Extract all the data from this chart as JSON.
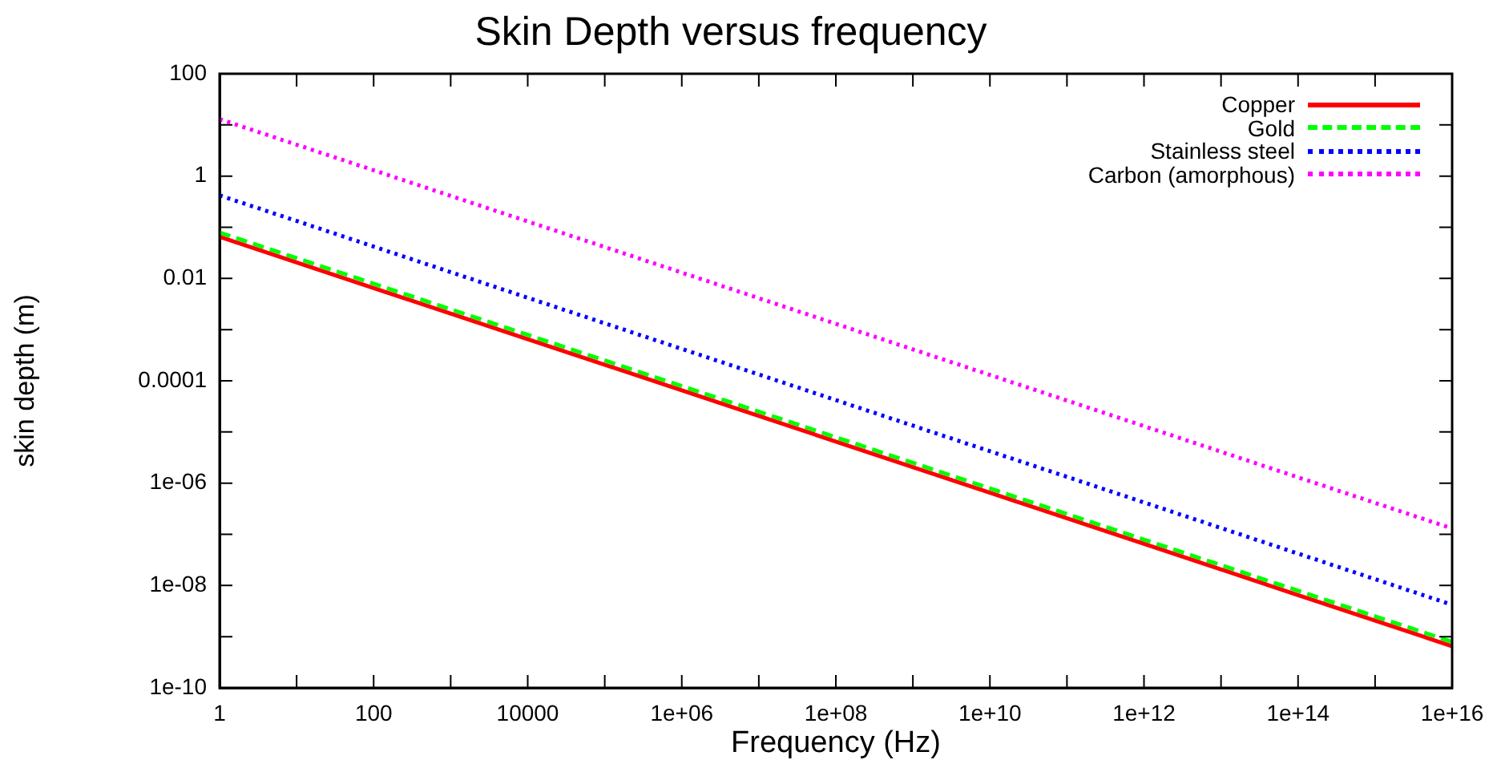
{
  "chart_data": {
    "type": "line",
    "title": "Skin Depth versus frequency",
    "xlabel": "Frequency (Hz)",
    "ylabel": "skin depth (m)",
    "log": "xy",
    "legend": "top right",
    "grid": false,
    "marker": "none",
    "xlim": [
      1,
      1e+16
    ],
    "x": [
      1,
      100,
      10000,
      1000000.0,
      100000000.0,
      10000000000.0,
      1000000000000.0,
      100000000000000.0,
      1e+16
    ],
    "ylim": [
      1e-10,
      100
    ],
    "xticks": [
      1,
      {
        "value": 10,
        "label": null
      },
      100,
      {
        "value": 1000,
        "label": null
      },
      10000,
      {
        "value": 100000,
        "label": null
      },
      {
        "value": 1000000.0,
        "label": "1e+06"
      },
      {
        "value": 10000000.0,
        "label": null
      },
      {
        "value": 100000000.0,
        "label": "1e+08"
      },
      {
        "value": 1000000000.0,
        "label": null
      },
      {
        "value": 10000000000.0,
        "label": "1e+10"
      },
      {
        "value": 100000000000.0,
        "label": null
      },
      {
        "value": 1000000000000.0,
        "label": "1e+12"
      },
      {
        "value": 10000000000000.0,
        "label": null
      },
      {
        "value": 100000000000000.0,
        "label": "1e+14"
      },
      {
        "value": 1000000000000000.0,
        "label": null
      },
      {
        "value": 1e+16,
        "label": "1e+16"
      }
    ],
    "yticks": [
      {
        "value": 1e-10,
        "label": "1e-10"
      },
      {
        "value": 1e-09,
        "label": null
      },
      {
        "value": 1e-08,
        "label": "1e-08"
      },
      {
        "value": 1e-07,
        "label": null
      },
      {
        "value": 1e-06,
        "label": "1e-06"
      },
      {
        "value": 1e-05,
        "label": null
      },
      {
        "value": 0.0001,
        "label": "0.0001"
      },
      {
        "value": 0.001,
        "label": null
      },
      0.01,
      {
        "value": 0.1,
        "label": null
      },
      1,
      {
        "value": 10,
        "label": null
      },
      100
    ],
    "series": [
      {
        "name": "Copper",
        "color": "#ff0000",
        "line_style": "solid",
        "values": [
          0.065,
          0.0065,
          0.00065,
          6.5e-05,
          6.5e-06,
          6.5e-07,
          6.5e-08,
          6.5e-09,
          6.5e-10
        ]
      },
      {
        "name": "Gold",
        "color": "#00ff00",
        "line_style": "dashed",
        "values": [
          0.079,
          0.0079,
          0.00079,
          7.9e-05,
          7.9e-06,
          7.9e-07,
          7.9e-08,
          7.9e-09,
          7.9e-10
        ]
      },
      {
        "name": "Stainless steel",
        "color": "#0000ff",
        "line_style": "dotted",
        "values": [
          0.42,
          0.042,
          0.0042,
          0.00042,
          4.2e-05,
          4.2e-06,
          4.2e-07,
          4.2e-08,
          4.2e-09
        ]
      },
      {
        "name": "Carbon (amorphous)",
        "color": "#ff00ff",
        "line_style": "dotted",
        "values": [
          13,
          1.3,
          0.13,
          0.013,
          0.0013,
          0.00013,
          1.3e-05,
          1.3e-06,
          1.3e-07
        ]
      }
    ]
  }
}
